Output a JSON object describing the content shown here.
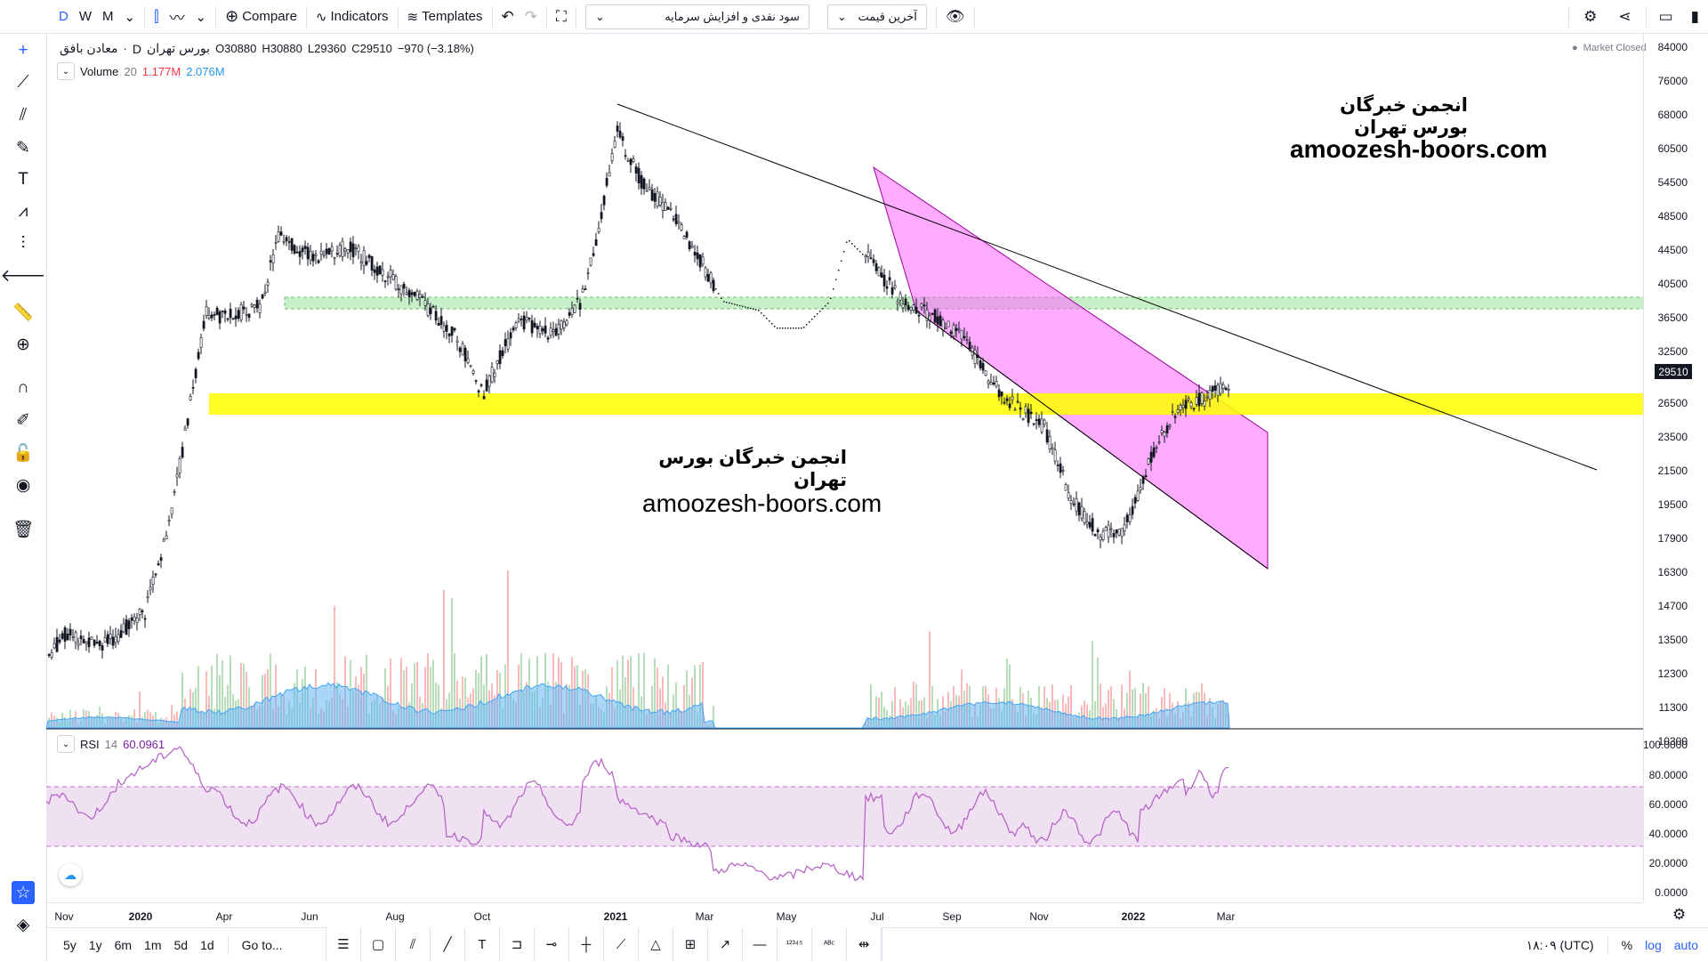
{
  "topbar": {
    "intervals": [
      "D",
      "W",
      "M"
    ],
    "compare": "Compare",
    "indicators": "Indicators",
    "templates": "Templates",
    "indicator_select": "سود نقدی و افزایش سرمایه",
    "price_type_select": "آخرین قیمت"
  },
  "legend": {
    "symbol": "معادن بافق",
    "exchange": "بورس تهران",
    "interval": "D",
    "open": "O30880",
    "high": "H30880",
    "low": "L29360",
    "close": "C29510",
    "change": "−970 (−3.18%)",
    "market_status": "Market Closed",
    "volume_label": "Volume",
    "volume_len": "20",
    "volume_val1": "1.177M",
    "volume_val2": "2.076M",
    "rsi_label": "RSI",
    "rsi_len": "14",
    "rsi_val": "60.0961"
  },
  "watermarks": {
    "fa": "انجمن خبرگان بورس تهران",
    "en": "amoozesh-boors.com"
  },
  "price_axis": [
    "84000",
    "76000",
    "68000",
    "60500",
    "54500",
    "48500",
    "44500",
    "40500",
    "36500",
    "32500",
    "29510",
    "26500",
    "23500",
    "21500",
    "19500",
    "17900",
    "16300",
    "14700",
    "13500",
    "12300",
    "11300",
    "10300"
  ],
  "current_price": "29510",
  "rsi_axis": [
    "100.0000",
    "80.0000",
    "60.0000",
    "40.0000",
    "20.0000",
    "0.0000"
  ],
  "time_axis": [
    "Nov",
    "2020",
    "Apr",
    "Jun",
    "Aug",
    "Oct",
    "2021",
    "Mar",
    "May",
    "Jul",
    "Sep",
    "Nov",
    "2022",
    "Mar"
  ],
  "bottombar": {
    "ranges": [
      "5y",
      "1y",
      "6m",
      "1m",
      "5d",
      "1d"
    ],
    "goto": "Go to...",
    "clock": "۱۸:۰۹ (UTC)",
    "percent": "%",
    "log": "log",
    "auto": "auto"
  },
  "colors": {
    "accent": "#2962ff",
    "yellow_zone": "#ffff00",
    "green_zone": "#c8f0c8",
    "channel": "#ff66ff",
    "rsi_line": "#9c27b0",
    "rsi_band": "#efe0f2",
    "down_red": "#f23645"
  }
}
